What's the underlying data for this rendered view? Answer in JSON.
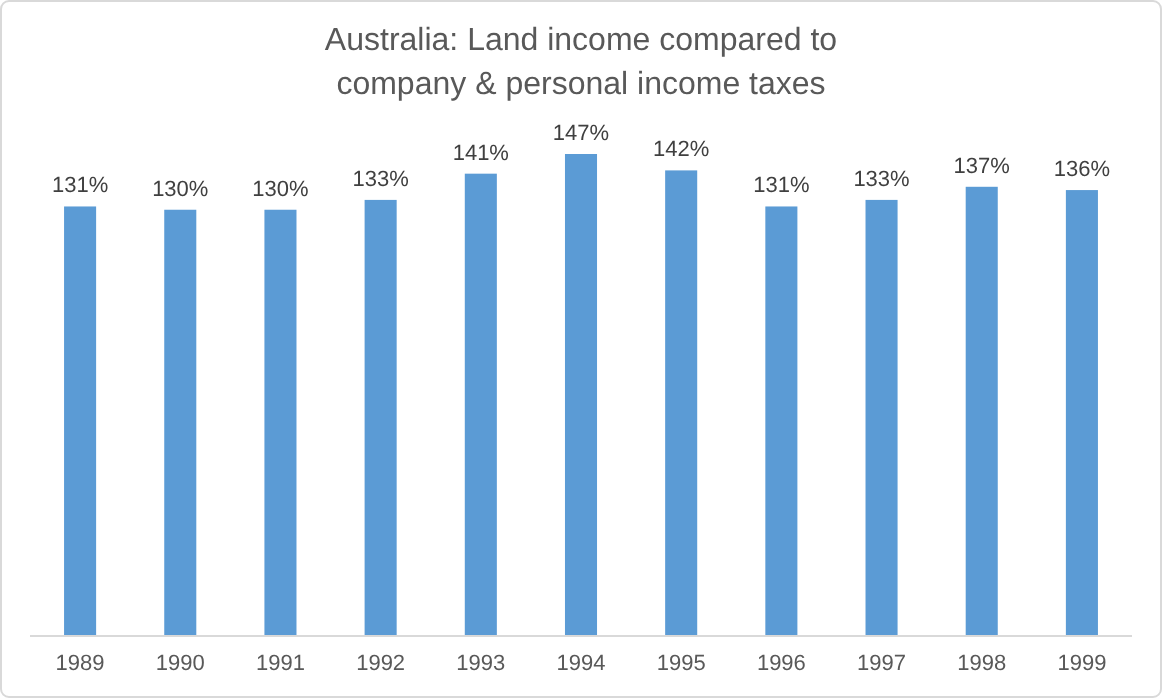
{
  "chart_data": {
    "type": "bar",
    "title": "Australia: Land income compared to\ncompany & personal income taxes",
    "categories": [
      "1989",
      "1990",
      "1991",
      "1992",
      "1993",
      "1994",
      "1995",
      "1996",
      "1997",
      "1998",
      "1999"
    ],
    "values": [
      131,
      130,
      130,
      133,
      141,
      147,
      142,
      131,
      133,
      137,
      136
    ],
    "value_labels": [
      "131%",
      "130%",
      "130%",
      "133%",
      "141%",
      "147%",
      "142%",
      "131%",
      "133%",
      "137%",
      "136%"
    ],
    "color": "#5b9bd5"
  }
}
